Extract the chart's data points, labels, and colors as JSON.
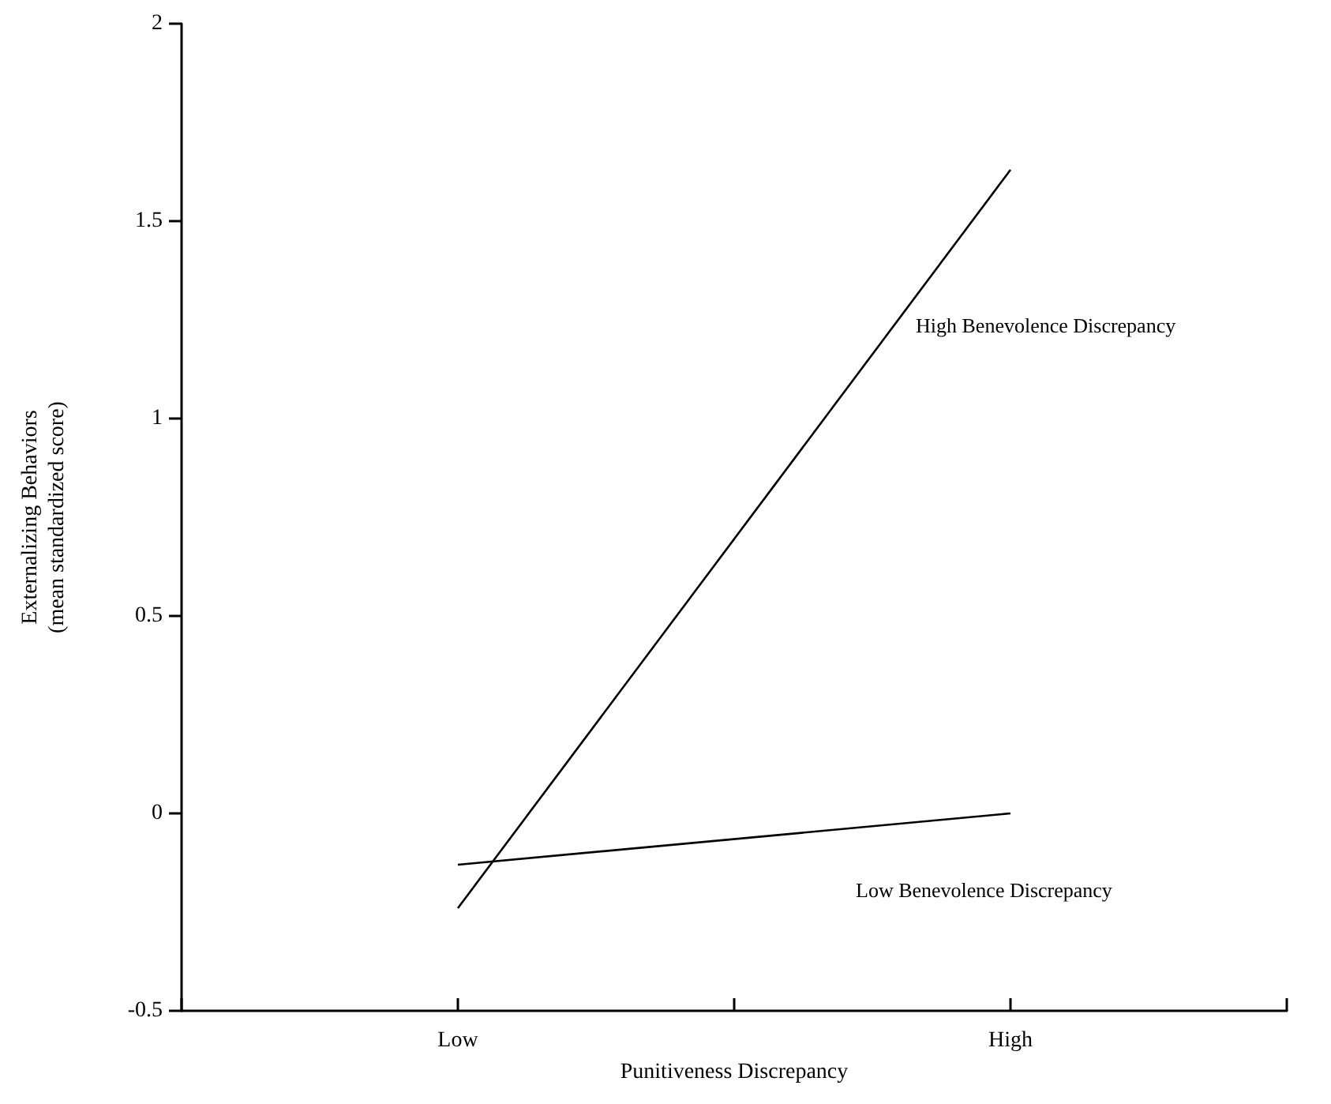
{
  "chart_data": {
    "type": "line",
    "xlabel": "Punitiveness Discrepancy",
    "ylabel": "Externalizing Behaviors\n(mean standardized score)",
    "categories": [
      null,
      "Low",
      null,
      "High",
      null
    ],
    "series": [
      {
        "name": "High Benevolence Discrepancy",
        "color": "#000000",
        "values": [
          null,
          -0.24,
          null,
          1.63,
          null
        ]
      },
      {
        "name": "Low Benevolence Discrepancy",
        "color": "#000000",
        "values": [
          null,
          -0.13,
          null,
          0.0,
          null
        ]
      }
    ],
    "ylim": [
      -0.5,
      2
    ],
    "yticks": [
      -0.5,
      0,
      0.5,
      1,
      1.5,
      2
    ],
    "grid": false,
    "legend": false,
    "marker": "none",
    "line_style": "solid"
  }
}
